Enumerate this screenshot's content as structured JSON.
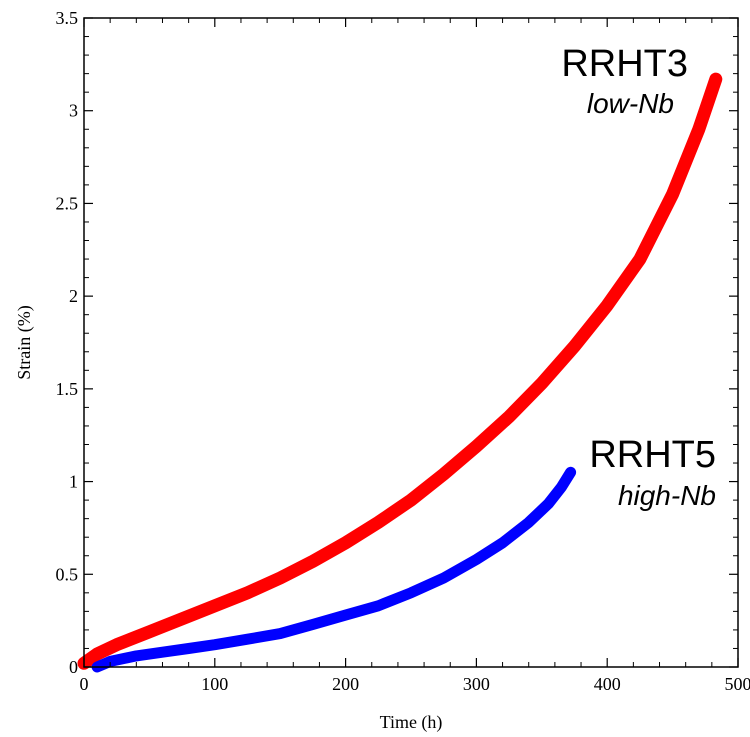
{
  "chart_data": {
    "type": "line",
    "title": "",
    "xlabel": "Time (h)",
    "ylabel": "Strain (%)",
    "xlim": [
      0,
      500
    ],
    "ylim": [
      0,
      3.5
    ],
    "xticks": [
      0,
      100,
      200,
      300,
      400,
      500
    ],
    "xtick_labels": [
      "0",
      "100",
      "200",
      "300",
      "400",
      "500"
    ],
    "yticks": [
      0,
      0.5,
      1,
      1.5,
      2,
      2.5,
      3,
      3.5
    ],
    "ytick_labels": [
      "0",
      "0.5",
      "1",
      "1.5",
      "2",
      "2.5",
      "3",
      "3.5"
    ],
    "grid": false,
    "legend": "none",
    "series": [
      {
        "name": "RRHT3",
        "color": "#ff0000",
        "x": [
          0,
          10,
          25,
          50,
          75,
          100,
          125,
          150,
          175,
          200,
          225,
          250,
          275,
          300,
          325,
          350,
          375,
          400,
          425,
          450,
          470,
          483
        ],
        "y": [
          0.02,
          0.07,
          0.12,
          0.19,
          0.26,
          0.33,
          0.4,
          0.48,
          0.57,
          0.67,
          0.78,
          0.9,
          1.04,
          1.19,
          1.35,
          1.53,
          1.73,
          1.95,
          2.2,
          2.55,
          2.9,
          3.17
        ]
      },
      {
        "name": "RRHT5",
        "color": "#0000ff",
        "x": [
          10,
          20,
          40,
          60,
          80,
          100,
          125,
          150,
          175,
          200,
          225,
          250,
          275,
          300,
          320,
          340,
          355,
          365,
          372
        ],
        "y": [
          0.0,
          0.03,
          0.06,
          0.08,
          0.1,
          0.12,
          0.15,
          0.18,
          0.23,
          0.28,
          0.33,
          0.4,
          0.48,
          0.58,
          0.67,
          0.78,
          0.88,
          0.97,
          1.05
        ]
      }
    ],
    "annotations": [
      {
        "text": "RRHT3",
        "sub": "low-Nb",
        "series": "RRHT3"
      },
      {
        "text": "RRHT5",
        "sub": "high-Nb",
        "series": "RRHT5"
      }
    ]
  }
}
